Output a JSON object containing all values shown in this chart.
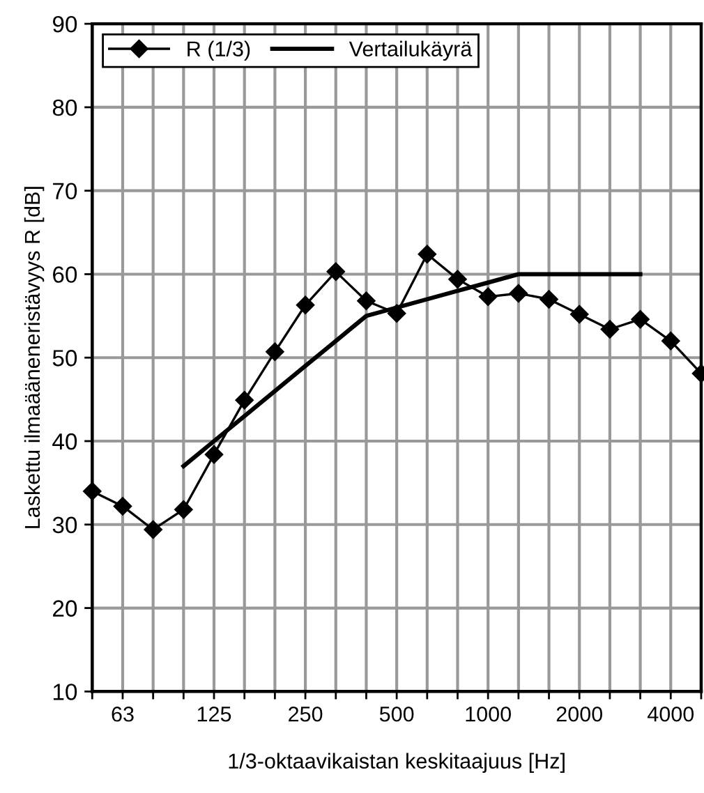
{
  "chart_data": {
    "type": "line",
    "xlabel": "1/3-oktaavikaistan keskitaajuus [Hz]",
    "ylabel": "Laskettu ilmaääneneristävyys R [dB]",
    "categories": [
      null,
      "63",
      null,
      null,
      "125",
      null,
      null,
      "250",
      null,
      null,
      "500",
      null,
      null,
      "1000",
      null,
      null,
      "2000",
      null,
      null,
      "4000",
      null
    ],
    "series": [
      {
        "name": "R (1/3)",
        "color": "#000000",
        "marker": "diamond",
        "values": [
          34,
          32.2,
          29.4,
          31.8,
          38.4,
          44.9,
          50.7,
          56.3,
          60.3,
          56.8,
          55.3,
          62.4,
          59.4,
          57.3,
          57.7,
          57,
          55.2,
          53.4,
          54.6,
          52,
          48.1
        ]
      },
      {
        "name": "Vertailukäyrä",
        "color": "#000000",
        "marker": "none",
        "values": [
          null,
          null,
          null,
          37,
          40,
          43,
          46,
          49,
          52,
          55,
          56,
          57,
          58,
          59,
          60,
          60,
          60,
          60,
          60,
          null,
          null
        ]
      }
    ],
    "ylim": [
      10,
      90
    ],
    "yticks": [
      10,
      20,
      30,
      40,
      50,
      60,
      70,
      80,
      90
    ],
    "grid": true,
    "legend": "top left",
    "line_style": "solid"
  }
}
